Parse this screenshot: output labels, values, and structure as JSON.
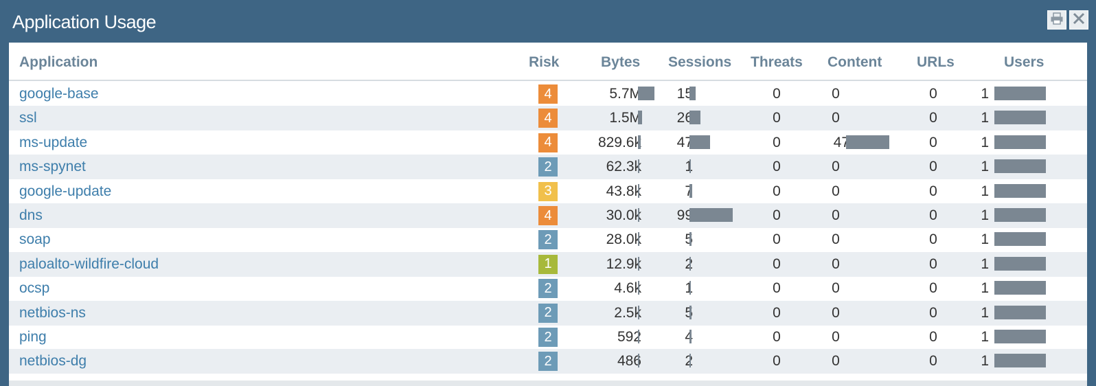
{
  "window": {
    "title": "Application Usage"
  },
  "colors": {
    "risk_1": "#a7b93b",
    "risk_2": "#6d9bb7",
    "risk_3": "#f1c04b",
    "risk_4": "#ec8c3a",
    "bar": "#7b8792",
    "link": "#3e7eab",
    "header_text": "#6b8599",
    "titlebar": "#3e6584"
  },
  "table": {
    "columns": [
      "Application",
      "Risk",
      "Bytes",
      "Sessions",
      "Threats",
      "Content",
      "URLs",
      "Users"
    ],
    "rows": [
      {
        "application": "google-base",
        "risk": "4",
        "bytes": "5.7M",
        "bytes_fraction": 1.0,
        "sessions": "15",
        "sessions_fraction": 0.15,
        "threats": "0",
        "content": "0",
        "content_fraction": 0,
        "urls": "0",
        "users": "1",
        "users_fraction": 1.0
      },
      {
        "application": "ssl",
        "risk": "4",
        "bytes": "1.5M",
        "bytes_fraction": 0.26,
        "sessions": "26",
        "sessions_fraction": 0.26,
        "threats": "0",
        "content": "0",
        "content_fraction": 0,
        "urls": "0",
        "users": "1",
        "users_fraction": 1.0
      },
      {
        "application": "ms-update",
        "risk": "4",
        "bytes": "829.6k",
        "bytes_fraction": 0.15,
        "sessions": "47",
        "sessions_fraction": 0.47,
        "threats": "0",
        "content": "47",
        "content_fraction": 1.0,
        "urls": "0",
        "users": "1",
        "users_fraction": 1.0
      },
      {
        "application": "ms-spynet",
        "risk": "2",
        "bytes": "62.3k",
        "bytes_fraction": 0.01,
        "sessions": "1",
        "sessions_fraction": 0.01,
        "threats": "0",
        "content": "0",
        "content_fraction": 0,
        "urls": "0",
        "users": "1",
        "users_fraction": 1.0
      },
      {
        "application": "google-update",
        "risk": "3",
        "bytes": "43.8k",
        "bytes_fraction": 0.01,
        "sessions": "7",
        "sessions_fraction": 0.07,
        "threats": "0",
        "content": "0",
        "content_fraction": 0,
        "urls": "0",
        "users": "1",
        "users_fraction": 1.0
      },
      {
        "application": "dns",
        "risk": "4",
        "bytes": "30.0k",
        "bytes_fraction": 0.005,
        "sessions": "99",
        "sessions_fraction": 1.0,
        "threats": "0",
        "content": "0",
        "content_fraction": 0,
        "urls": "0",
        "users": "1",
        "users_fraction": 1.0
      },
      {
        "application": "soap",
        "risk": "2",
        "bytes": "28.0k",
        "bytes_fraction": 0.005,
        "sessions": "5",
        "sessions_fraction": 0.05,
        "threats": "0",
        "content": "0",
        "content_fraction": 0,
        "urls": "0",
        "users": "1",
        "users_fraction": 1.0
      },
      {
        "application": "paloalto-wildfire-cloud",
        "risk": "1",
        "bytes": "12.9k",
        "bytes_fraction": 0.002,
        "sessions": "2",
        "sessions_fraction": 0.02,
        "threats": "0",
        "content": "0",
        "content_fraction": 0,
        "urls": "0",
        "users": "1",
        "users_fraction": 1.0
      },
      {
        "application": "ocsp",
        "risk": "2",
        "bytes": "4.6k",
        "bytes_fraction": 0.001,
        "sessions": "1",
        "sessions_fraction": 0.01,
        "threats": "0",
        "content": "0",
        "content_fraction": 0,
        "urls": "0",
        "users": "1",
        "users_fraction": 1.0
      },
      {
        "application": "netbios-ns",
        "risk": "2",
        "bytes": "2.5k",
        "bytes_fraction": 0.0005,
        "sessions": "5",
        "sessions_fraction": 0.05,
        "threats": "0",
        "content": "0",
        "content_fraction": 0,
        "urls": "0",
        "users": "1",
        "users_fraction": 1.0
      },
      {
        "application": "ping",
        "risk": "2",
        "bytes": "592",
        "bytes_fraction": 0.0001,
        "sessions": "4",
        "sessions_fraction": 0.04,
        "threats": "0",
        "content": "0",
        "content_fraction": 0,
        "urls": "0",
        "users": "1",
        "users_fraction": 1.0
      },
      {
        "application": "netbios-dg",
        "risk": "2",
        "bytes": "486",
        "bytes_fraction": 0.0001,
        "sessions": "2",
        "sessions_fraction": 0.02,
        "threats": "0",
        "content": "0",
        "content_fraction": 0,
        "urls": "0",
        "users": "1",
        "users_fraction": 1.0
      }
    ]
  }
}
